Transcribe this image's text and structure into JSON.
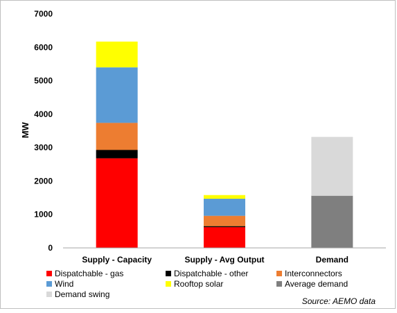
{
  "chart_data": {
    "type": "bar",
    "stacked": true,
    "categories": [
      "Supply - Capacity",
      "Supply - Avg Output",
      "Demand"
    ],
    "ylabel": "MW",
    "ylim": [
      0,
      7000
    ],
    "yticks": [
      0,
      1000,
      2000,
      3000,
      4000,
      5000,
      6000,
      7000
    ],
    "grid": false,
    "legend_position": "bottom",
    "series": [
      {
        "name": "Dispatchable - gas",
        "color": "#ff0000",
        "values": [
          2680,
          620,
          0
        ]
      },
      {
        "name": "Dispatchable - other",
        "color": "#000000",
        "values": [
          250,
          30,
          0
        ]
      },
      {
        "name": "Interconnectors",
        "color": "#ed7d31",
        "values": [
          810,
          310,
          0
        ]
      },
      {
        "name": "Wind",
        "color": "#5b9bd5",
        "values": [
          1660,
          510,
          0
        ]
      },
      {
        "name": "Rooftop solar",
        "color": "#ffff00",
        "values": [
          770,
          110,
          0
        ]
      },
      {
        "name": "Average demand",
        "color": "#7f7f7f",
        "values": [
          0,
          0,
          1560
        ]
      },
      {
        "name": "Demand swing",
        "color": "#d9d9d9",
        "values": [
          0,
          0,
          1760
        ]
      }
    ],
    "source": "Source: AEMO data"
  }
}
